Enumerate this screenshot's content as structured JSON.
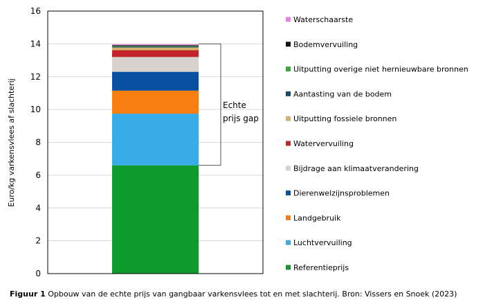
{
  "chart_data": {
    "type": "bar",
    "stacked": true,
    "categories": [
      ""
    ],
    "ylabel": "Euro/kg varkensvlees af slachterij",
    "xlabel": "",
    "ylim": [
      0,
      16
    ],
    "yticks": [
      0,
      2,
      4,
      6,
      8,
      10,
      12,
      14,
      16
    ],
    "grid": true,
    "legend_position": "right",
    "series": [
      {
        "name": "Referentieprijs",
        "values": [
          6.6
        ],
        "color": "#0e9a2d"
      },
      {
        "name": "Luchtvervuiling",
        "values": [
          3.15
        ],
        "color": "#38ace6"
      },
      {
        "name": "Landgebruik",
        "values": [
          1.4
        ],
        "color": "#f97e10"
      },
      {
        "name": "Dierenwelzijnsproblemen",
        "values": [
          1.15
        ],
        "color": "#0a50a0"
      },
      {
        "name": "Bijdrage aan klimaatverandering",
        "values": [
          0.9
        ],
        "color": "#d7d3cc"
      },
      {
        "name": "Watervervuiling",
        "values": [
          0.42
        ],
        "color": "#c3232a"
      },
      {
        "name": "Uitputting fossiele bronnen",
        "values": [
          0.16
        ],
        "color": "#d6b36b"
      },
      {
        "name": "Aantasting van de bodem",
        "values": [
          0.05
        ],
        "color": "#18496a"
      },
      {
        "name": "Uitputting overige niet hernieuwbare bronnen",
        "values": [
          0.04
        ],
        "color": "#3aaa35"
      },
      {
        "name": "Bodemvervuiling",
        "values": [
          0.05
        ],
        "color": "#111111"
      },
      {
        "name": "Waterschaarste",
        "values": [
          0.06
        ],
        "color": "#e77fe3"
      }
    ],
    "annotation": {
      "lines": [
        "Echte",
        "prijs gap"
      ],
      "from": 6.6,
      "to": 14.0
    }
  },
  "caption": {
    "label": "Figuur 1",
    "text": " Opbouw van de echte prijs van gangbaar varkensvlees tot en met slachterij. Bron: Vissers en Snoek (2023)"
  }
}
